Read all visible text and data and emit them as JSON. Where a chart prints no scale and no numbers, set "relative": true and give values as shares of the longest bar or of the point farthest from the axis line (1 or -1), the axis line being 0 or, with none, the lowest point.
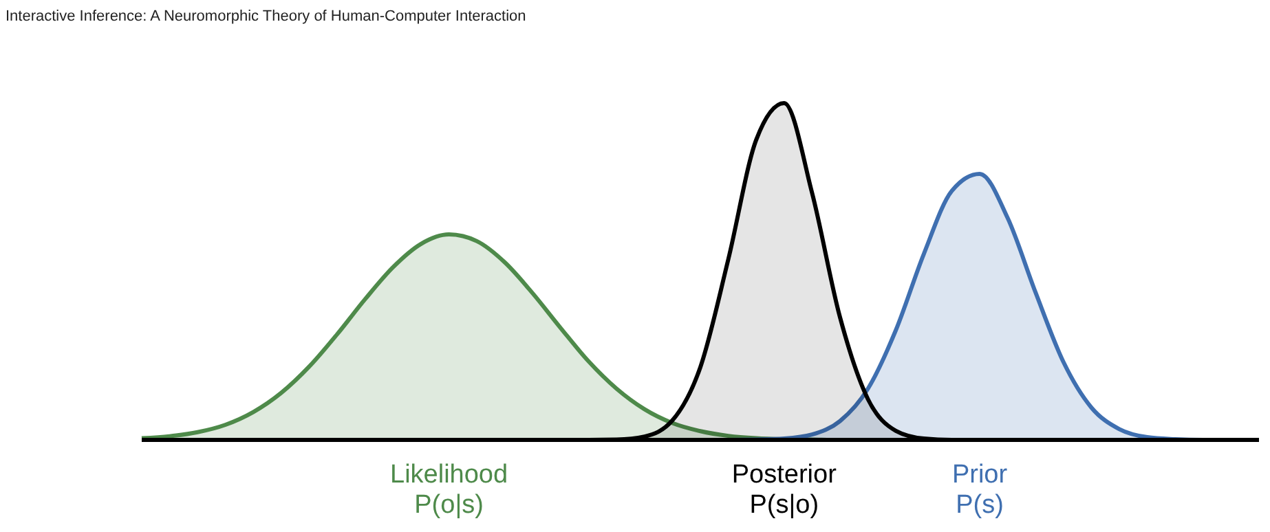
{
  "chart_data": {
    "type": "area",
    "relative": true,
    "title": "Interactive Inference: A Neuromorphic Theory of Human-Computer Interaction",
    "categories": [
      null,
      null,
      null,
      null,
      null,
      null,
      null,
      null,
      null,
      null,
      null,
      null,
      null,
      null,
      null,
      null,
      null,
      null,
      null,
      null,
      null,
      null,
      null,
      null,
      null,
      null,
      null,
      null,
      null,
      null,
      null,
      null,
      null,
      null,
      null,
      null,
      null,
      null,
      null,
      null,
      null
    ],
    "series": [
      {
        "name": "Likelihood\nP(o|s)",
        "color": "#4e8a4a",
        "values": [
          0.005,
          0.011,
          0.023,
          0.045,
          0.083,
          0.14,
          0.218,
          0.314,
          0.418,
          0.513,
          0.582,
          0.61,
          0.59,
          0.527,
          0.435,
          0.332,
          0.233,
          0.152,
          0.091,
          0.05,
          0.026,
          0.012,
          0.005,
          0.002,
          0.001,
          0,
          0,
          0,
          0,
          0,
          0,
          0,
          0,
          0,
          0,
          0,
          0,
          0,
          0,
          0,
          0
        ]
      },
      {
        "name": "Posterior\nP(s|o)",
        "color": "#000000",
        "values": [
          0,
          0,
          0,
          0,
          0,
          0,
          0,
          0,
          0,
          0,
          0,
          0,
          0,
          0,
          0,
          0,
          0,
          0.001,
          0.01,
          0.058,
          0.216,
          0.536,
          0.891,
          1,
          0.733,
          0.364,
          0.121,
          0.027,
          0.004,
          0,
          0,
          0,
          0,
          0,
          0,
          0,
          0,
          0,
          0,
          0,
          0
        ]
      },
      {
        "name": "Prior\nP(s)",
        "color": "#3f6fb0",
        "values": [
          0,
          0,
          0,
          0,
          0,
          0,
          0,
          0,
          0,
          0,
          0,
          0,
          0,
          0,
          0,
          0,
          0,
          0,
          0,
          0,
          0,
          0,
          0.001,
          0.004,
          0.016,
          0.056,
          0.152,
          0.326,
          0.552,
          0.739,
          0.79,
          0.659,
          0.438,
          0.231,
          0.096,
          0.032,
          0.008,
          0.002,
          0,
          0,
          0
        ]
      }
    ],
    "legend": false
  }
}
